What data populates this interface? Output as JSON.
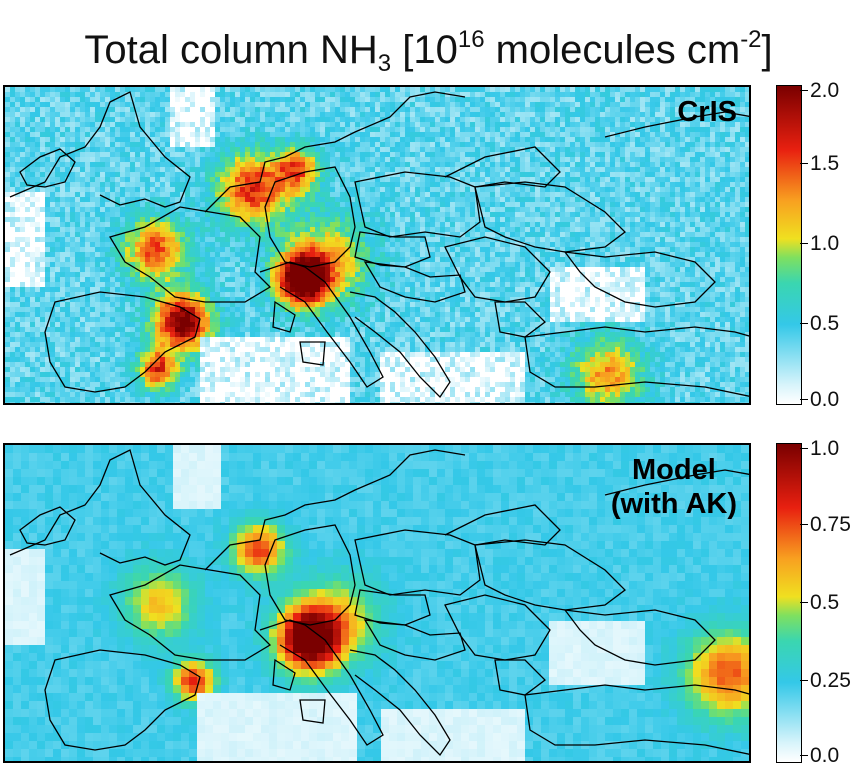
{
  "title": {
    "prefix": "Total column NH",
    "sub": "3",
    "mid": " [10",
    "sup1": "16",
    "units": " molecules cm",
    "sup2": "-2",
    "suffix": "]"
  },
  "panels": [
    {
      "label_line1": "CrIS",
      "label_line2": "",
      "colorbar_ticks": [
        "2.0",
        "1.5",
        "1.0",
        "0.5",
        "0.0"
      ],
      "colorbar_range": [
        0,
        2.0
      ]
    },
    {
      "label_line1": "Model",
      "label_line2": "(with AK)",
      "colorbar_ticks": [
        "1.0",
        "0.75",
        "0.5",
        "0.25",
        "0.0"
      ],
      "colorbar_range": [
        0,
        1.0
      ]
    }
  ],
  "colors": {
    "low": "#ffffff",
    "cyan": "#34c8e8",
    "yellow": "#f0e020",
    "red": "#e82010",
    "max": "#7a0000",
    "border": "#000000"
  }
}
